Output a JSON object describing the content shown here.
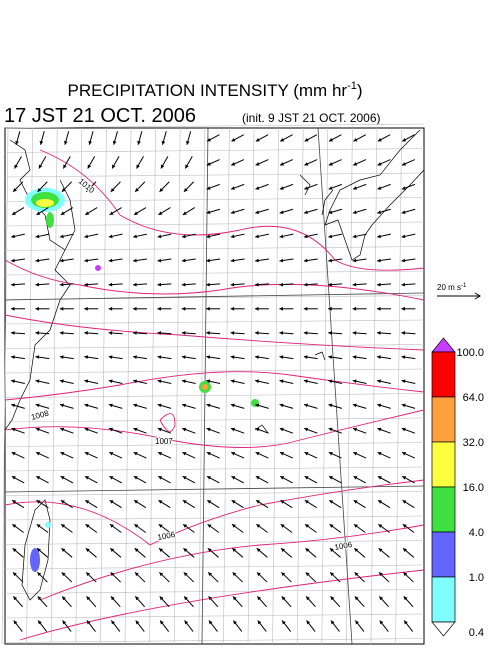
{
  "header": {
    "title_main": "PRECIPITATION INTENSITY (mm hr",
    "title_sup": "-1",
    "title_end": ")",
    "valid_time": "17 JST 21 OCT. 2006",
    "init_time": "(init. 9 JST 21 OCT. 2006)"
  },
  "reference_vector": {
    "label": "20 m s",
    "label_sup": "-1"
  },
  "isobar_labels": [
    "1010",
    "1008",
    "1007",
    "1006",
    "1006"
  ],
  "colorbar": {
    "labels": [
      "100.0",
      "64.0",
      "32.0",
      "16.0",
      "4.0",
      "1.0",
      "0.4"
    ],
    "colors": [
      "#c83cff",
      "#ff0000",
      "#ffa040",
      "#ffff40",
      "#40e040",
      "#6464ff",
      "#80ffff",
      "#ffffff"
    ]
  }
}
